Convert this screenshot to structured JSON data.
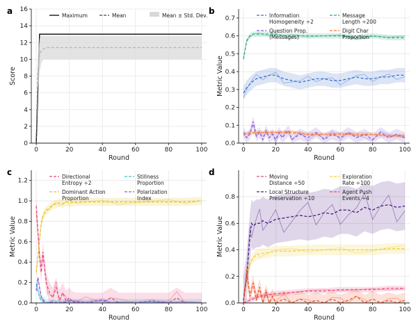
{
  "panels": [
    {
      "letter": "a",
      "chart_data": {
        "type": "line",
        "xlabel": "Round",
        "ylabel": "Score",
        "xlim": [
          -3,
          103
        ],
        "ylim": [
          0,
          16
        ],
        "xticks": [
          0,
          20,
          40,
          60,
          80,
          100
        ],
        "yticks": [
          0,
          2,
          4,
          6,
          8,
          10,
          12,
          14,
          16
        ],
        "grid": true,
        "legend": "top-center",
        "legend_cols": 3,
        "series": [
          {
            "name": "Maximum",
            "kind": "line",
            "color": "#000000",
            "style": "solid",
            "x": [
              0,
              2,
              100
            ],
            "values": [
              0,
              13,
              13
            ]
          },
          {
            "name": "Mean",
            "kind": "line",
            "color": "#444444",
            "style": "dashed",
            "x": [
              0,
              1,
              2,
              3,
              4,
              5,
              6,
              8,
              100
            ],
            "values": [
              0,
              8.5,
              10.5,
              11.0,
              11.2,
              11.3,
              11.4,
              11.4,
              11.4
            ]
          },
          {
            "name": "Mean ± Std. Dev.",
            "kind": "band",
            "color": "#d9d9d9",
            "x": [
              0,
              1,
              2,
              3,
              4,
              5,
              100
            ],
            "lower": [
              0,
              6.5,
              8.5,
              9.5,
              10.0,
              10.0,
              10.0
            ],
            "upper": [
              0,
              10.5,
              12.5,
              12.8,
              12.8,
              12.8,
              12.8
            ]
          }
        ]
      }
    },
    {
      "letter": "b",
      "chart_data": {
        "type": "line",
        "xlabel": "Round",
        "ylabel": "Metric Value",
        "xlim": [
          -3,
          103
        ],
        "ylim": [
          0,
          0.75
        ],
        "xticks": [
          0,
          20,
          40,
          60,
          80,
          100
        ],
        "yticks": [
          0.0,
          0.1,
          0.2,
          0.3,
          0.4,
          0.5,
          0.6,
          0.7
        ],
        "grid": true,
        "legend": "top",
        "legend_cols": 2,
        "series": [
          {
            "name": "Information\nHomogeneity ÷2",
            "kind": "line",
            "color": "#3b6fcf",
            "style": "dashed",
            "band": true,
            "x": [
              0,
              2,
              5,
              8,
              12,
              16,
              20,
              25,
              30,
              35,
              40,
              45,
              50,
              55,
              60,
              65,
              70,
              75,
              80,
              85,
              90,
              95,
              100
            ],
            "values": [
              0.28,
              0.31,
              0.34,
              0.36,
              0.37,
              0.38,
              0.38,
              0.36,
              0.35,
              0.34,
              0.35,
              0.36,
              0.36,
              0.35,
              0.35,
              0.36,
              0.37,
              0.36,
              0.36,
              0.37,
              0.37,
              0.38,
              0.38
            ],
            "spread": 0.04
          },
          {
            "name": "Message\nLength ÷200",
            "kind": "line",
            "color": "#2ca87a",
            "style": "dashed",
            "band": true,
            "x": [
              0,
              2,
              4,
              6,
              10,
              15,
              20,
              25,
              30,
              40,
              50,
              60,
              70,
              80,
              90,
              100
            ],
            "values": [
              0.47,
              0.57,
              0.6,
              0.61,
              0.61,
              0.61,
              0.61,
              0.6,
              0.6,
              0.6,
              0.6,
              0.6,
              0.59,
              0.6,
              0.59,
              0.59
            ],
            "spread": 0.015
          },
          {
            "name": "Question Prop.\n(Messages)",
            "kind": "line",
            "color": "#8a5bd6",
            "style": "dashed",
            "band": true,
            "x": [
              0,
              2,
              4,
              6,
              8,
              10,
              12,
              14,
              16,
              18,
              20,
              22,
              24,
              26,
              28,
              30,
              35,
              40,
              45,
              50,
              55,
              60,
              65,
              70,
              75,
              80,
              85,
              90,
              95,
              100
            ],
            "values": [
              0.06,
              0.03,
              0.05,
              0.12,
              0.04,
              0.06,
              0.02,
              0.07,
              0.03,
              0.05,
              0.02,
              0.06,
              0.03,
              0.05,
              0.07,
              0.02,
              0.05,
              0.03,
              0.06,
              0.02,
              0.05,
              0.03,
              0.06,
              0.03,
              0.05,
              0.02,
              0.06,
              0.03,
              0.05,
              0.03
            ],
            "spread": 0.03
          },
          {
            "name": "Digit Char\nProportion",
            "kind": "line",
            "color": "#f07b3a",
            "style": "dashed",
            "band": true,
            "x": [
              0,
              5,
              10,
              20,
              30,
              40,
              50,
              60,
              70,
              80,
              90,
              100
            ],
            "values": [
              0.05,
              0.06,
              0.06,
              0.06,
              0.06,
              0.05,
              0.05,
              0.05,
              0.05,
              0.05,
              0.04,
              0.04
            ],
            "spread": 0.012
          }
        ]
      }
    },
    {
      "letter": "c",
      "chart_data": {
        "type": "line",
        "xlabel": "Round",
        "ylabel": "Metric Value",
        "xlim": [
          -3,
          103
        ],
        "ylim": [
          0,
          1.3
        ],
        "xticks": [
          0,
          20,
          40,
          60,
          80,
          100
        ],
        "yticks": [
          0.0,
          0.2,
          0.4,
          0.6,
          0.8,
          1.0,
          1.2
        ],
        "grid": true,
        "legend": "top",
        "legend_cols": 2,
        "series": [
          {
            "name": "Directional\nEntropy ÷2",
            "kind": "line",
            "color": "#e8487a",
            "style": "dashed",
            "band": true,
            "x": [
              0,
              1,
              2,
              3,
              4,
              5,
              6,
              7,
              8,
              10,
              12,
              14,
              16,
              18,
              20,
              22,
              25,
              30,
              40,
              45,
              50,
              60,
              70,
              80,
              85,
              90,
              100
            ],
            "values": [
              0.95,
              0.7,
              0.45,
              0.3,
              0.5,
              0.35,
              0.2,
              0.15,
              0.1,
              0.05,
              0.15,
              0.03,
              0.1,
              0.02,
              0.05,
              0.01,
              0.0,
              0.0,
              0.0,
              0.05,
              0.0,
              0.0,
              0.0,
              0.0,
              0.05,
              0.0,
              0.0
            ],
            "spread": 0.1
          },
          {
            "name": "Stillness\nProportion",
            "kind": "line",
            "color": "#35c6c9",
            "style": "dashed",
            "band": true,
            "x": [
              0,
              1,
              2,
              3,
              4,
              5,
              6,
              8,
              10,
              20,
              40,
              60,
              80,
              100
            ],
            "values": [
              0.18,
              0.12,
              0.06,
              0.03,
              0.01,
              0.02,
              0.0,
              0.0,
              0.0,
              0.0,
              0.0,
              0.0,
              0.0,
              0.0
            ],
            "spread": 0.04
          },
          {
            "name": "Dominant Action\nProportion",
            "kind": "line",
            "color": "#e6c21c",
            "style": "dashed",
            "band": true,
            "x": [
              0,
              1,
              2,
              3,
              4,
              5,
              6,
              8,
              10,
              12,
              14,
              16,
              18,
              20,
              25,
              30,
              40,
              50,
              60,
              70,
              80,
              90,
              100
            ],
            "values": [
              0.3,
              0.45,
              0.62,
              0.78,
              0.85,
              0.88,
              0.9,
              0.93,
              0.96,
              0.97,
              0.98,
              0.97,
              0.99,
              0.98,
              0.99,
              0.99,
              0.99,
              0.99,
              0.99,
              0.99,
              0.99,
              0.99,
              1.0
            ],
            "spread": 0.04
          },
          {
            "name": "Polarization\nIndex",
            "kind": "line",
            "color": "#8a5bd6",
            "style": "dashed",
            "band": true,
            "x": [
              0,
              1,
              2,
              3,
              4,
              5,
              6,
              8,
              10,
              15,
              20,
              30,
              40,
              45,
              50,
              60,
              70,
              80,
              90,
              100
            ],
            "values": [
              0.12,
              0.25,
              0.15,
              0.06,
              0.03,
              0.01,
              0.0,
              0.0,
              0.01,
              0.0,
              0.02,
              0.0,
              0.03,
              0.0,
              0.0,
              0.0,
              0.02,
              0.0,
              0.0,
              0.0
            ],
            "spread": 0.02
          }
        ]
      }
    },
    {
      "letter": "d",
      "chart_data": {
        "type": "line",
        "xlabel": "Round",
        "ylabel": "Metric Value",
        "xlim": [
          -3,
          103
        ],
        "ylim": [
          0,
          1.0
        ],
        "xticks": [
          0,
          20,
          40,
          60,
          80,
          100
        ],
        "yticks": [
          0.0,
          0.2,
          0.4,
          0.6,
          0.8
        ],
        "grid": true,
        "legend": "top",
        "legend_cols": 2,
        "series": [
          {
            "name": "Moving\nDistance ÷50",
            "kind": "line",
            "color": "#e8487a",
            "style": "dashed",
            "band": true,
            "x": [
              0,
              2,
              4,
              6,
              8,
              10,
              15,
              20,
              30,
              40,
              50,
              60,
              70,
              80,
              90,
              100
            ],
            "values": [
              0.0,
              0.01,
              0.02,
              0.03,
              0.04,
              0.05,
              0.06,
              0.07,
              0.08,
              0.09,
              0.09,
              0.1,
              0.1,
              0.1,
              0.11,
              0.11
            ],
            "spread": 0.02
          },
          {
            "name": "Exploration\nRate ÷100",
            "kind": "line",
            "color": "#efcf3a",
            "style": "dashed",
            "band": true,
            "x": [
              0,
              2,
              4,
              6,
              8,
              10,
              15,
              20,
              30,
              40,
              50,
              60,
              70,
              80,
              90,
              100
            ],
            "values": [
              0.05,
              0.18,
              0.3,
              0.34,
              0.36,
              0.37,
              0.38,
              0.39,
              0.39,
              0.4,
              0.4,
              0.4,
              0.4,
              0.4,
              0.41,
              0.41
            ],
            "spread": 0.04
          },
          {
            "name": "Local Structure\nPreservation ÷10",
            "kind": "line",
            "color": "#4b1a84",
            "style": "dashed",
            "band": true,
            "x": [
              0,
              2,
              4,
              5,
              6,
              8,
              10,
              12,
              15,
              20,
              25,
              30,
              35,
              40,
              45,
              50,
              55,
              60,
              65,
              70,
              75,
              80,
              85,
              90,
              95,
              100
            ],
            "values": [
              0.02,
              0.2,
              0.5,
              0.6,
              0.58,
              0.6,
              0.6,
              0.62,
              0.6,
              0.63,
              0.64,
              0.65,
              0.66,
              0.65,
              0.66,
              0.68,
              0.67,
              0.7,
              0.7,
              0.68,
              0.72,
              0.7,
              0.73,
              0.74,
              0.72,
              0.73
            ],
            "spread": 0.18
          },
          {
            "name": "Agent Push\nEvents ÷4",
            "kind": "line",
            "color": "#f0552a",
            "style": "dashed",
            "band": true,
            "x": [
              0,
              2,
              4,
              6,
              8,
              10,
              12,
              14,
              16,
              18,
              20,
              25,
              30,
              35,
              40,
              45,
              50,
              55,
              60,
              65,
              70,
              75,
              80,
              85,
              90,
              95,
              100
            ],
            "values": [
              0.0,
              0.25,
              0.05,
              0.15,
              0.02,
              0.12,
              0.0,
              0.08,
              0.0,
              0.05,
              0.0,
              0.03,
              0.0,
              0.03,
              0.0,
              0.02,
              0.0,
              0.03,
              0.0,
              0.02,
              0.05,
              0.0,
              0.03,
              0.0,
              0.02,
              0.0,
              0.02
            ],
            "spread": 0.06
          }
        ]
      }
    }
  ]
}
